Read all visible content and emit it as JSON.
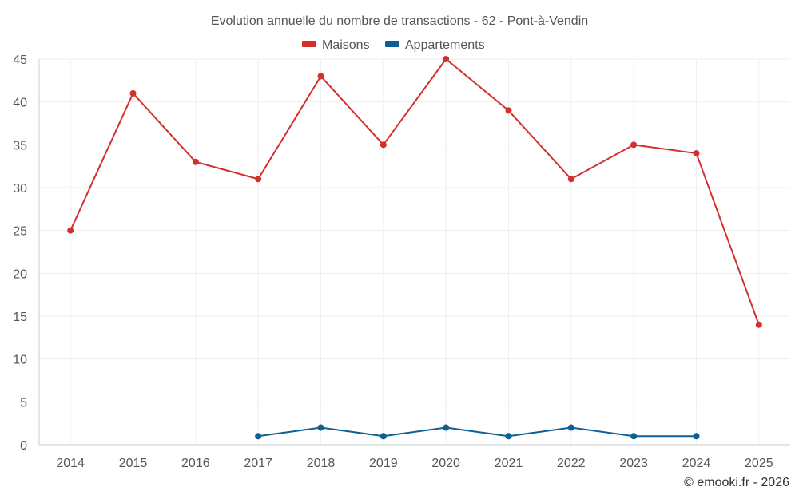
{
  "chart_data": {
    "type": "line",
    "title": "Evolution annuelle du nombre de transactions - 62 - Pont-à-Vendin",
    "xlabel": "",
    "ylabel": "",
    "categories": [
      "2014",
      "2015",
      "2016",
      "2017",
      "2018",
      "2019",
      "2020",
      "2021",
      "2022",
      "2023",
      "2024",
      "2025"
    ],
    "ylim": [
      0,
      45
    ],
    "yticks": [
      0,
      5,
      10,
      15,
      20,
      25,
      30,
      35,
      40,
      45
    ],
    "grid": true,
    "legend_position": "top-center",
    "series": [
      {
        "name": "Maisons",
        "color": "#d32f2f",
        "values": [
          25,
          41,
          33,
          31,
          43,
          35,
          45,
          39,
          31,
          35,
          34,
          14
        ]
      },
      {
        "name": "Appartements",
        "color": "#0d5f94",
        "values": [
          null,
          null,
          null,
          1,
          2,
          1,
          2,
          1,
          2,
          1,
          1,
          null
        ]
      }
    ],
    "credit": "© emooki.fr - 2026"
  }
}
